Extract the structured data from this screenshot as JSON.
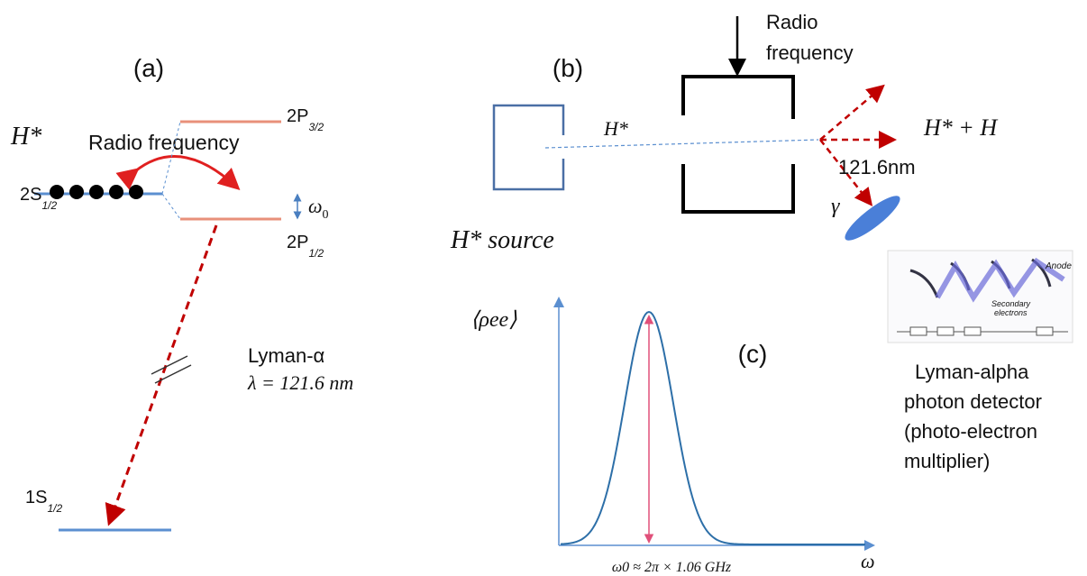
{
  "panel_a": {
    "label": "(a)",
    "species": "H*",
    "rf_label": "Radio frequency",
    "level_2p32": {
      "main": "2P",
      "sub": "3/2"
    },
    "level_2s12": {
      "main": "2S",
      "sub": "1/2"
    },
    "level_2p12": {
      "main": "2P",
      "sub": "1/2"
    },
    "level_1s12": {
      "main": "1S",
      "sub": "1/2"
    },
    "splitting": {
      "main": "ω",
      "sub": "0"
    },
    "transition_name": "Lyman-α",
    "transition_wavelength": "λ = 121.6 nm"
  },
  "panel_b": {
    "label": "(b)",
    "rf_lines": [
      "Radio",
      "frequency"
    ],
    "beam_label": "H*",
    "output_label": "H* + H",
    "photon_wavelength": "121.6nm",
    "photon_symbol": "γ",
    "source_label": "H* source"
  },
  "detector": {
    "anode": "Anode",
    "secondary": [
      "Secondary",
      "electrons"
    ],
    "caption": [
      "Lyman-alpha",
      "photon detector",
      "(photo-electron",
      "multiplier)"
    ]
  },
  "panel_c": {
    "label": "(c)",
    "y_label": "⟨ρee⟩",
    "x_label": "ω",
    "resonance": "ω0 ≈ 2π × 1.06 GHz"
  }
}
